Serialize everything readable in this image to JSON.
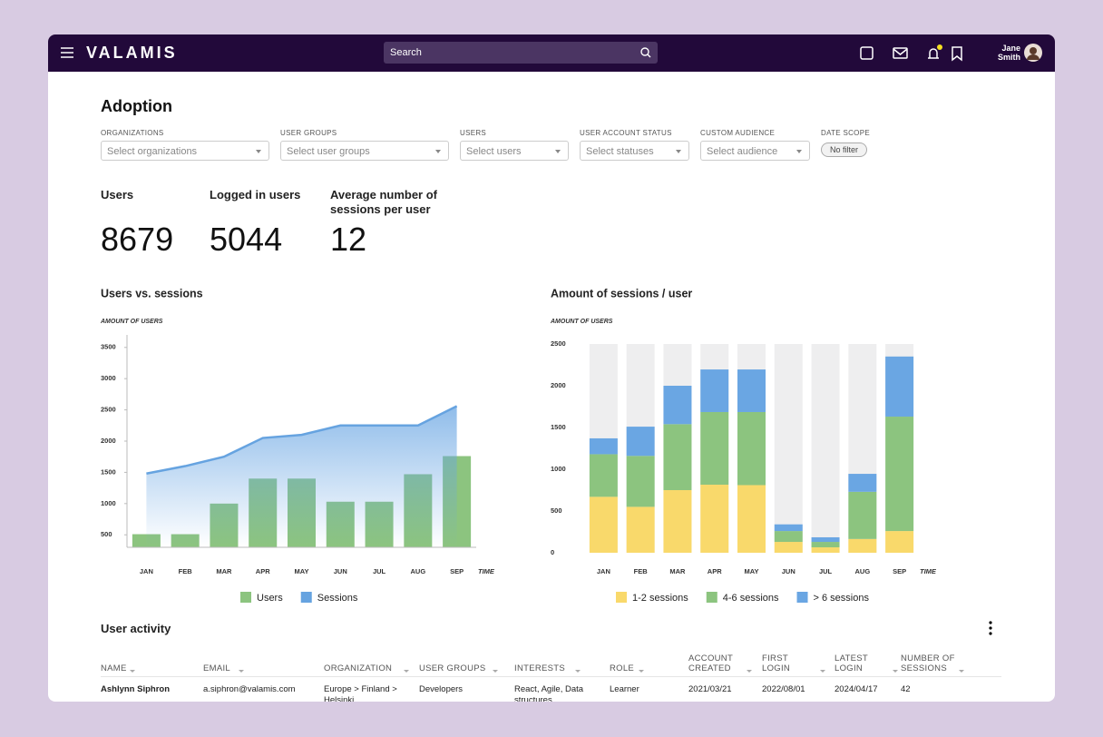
{
  "header": {
    "brand": "VALAMIS",
    "search": "Search",
    "user": "Jane Smith"
  },
  "page_title": "Adoption",
  "filters": [
    {
      "label": "ORGANIZATIONS",
      "placeholder": "Select organizations"
    },
    {
      "label": "USER GROUPS",
      "placeholder": "Select user groups"
    },
    {
      "label": "USERS",
      "placeholder": "Select users"
    },
    {
      "label": "USER ACCOUNT STATUS",
      "placeholder": "Select statuses"
    },
    {
      "label": "CUSTOM AUDIENCE",
      "placeholder": "Select audience"
    },
    {
      "label": "DATE SCOPE",
      "placeholder": "No filter"
    }
  ],
  "stats": [
    {
      "label": "Users",
      "value": 8679
    },
    {
      "label": "Logged in users",
      "value": 5044
    },
    {
      "label": "Average number of sessions per user",
      "value": 12
    }
  ],
  "chart_data": [
    {
      "type": "combo",
      "title": "Users vs. sessions",
      "y_label": "AMOUNT OF USERS",
      "x_label": "TIME",
      "categories": [
        "JAN",
        "FEB",
        "MAR",
        "APR",
        "MAY",
        "JUN",
        "JUL",
        "AUG",
        "SEP"
      ],
      "series": [
        {
          "name": "Users",
          "kind": "bar",
          "color": "#8cc47f",
          "values": [
            510,
            510,
            1000,
            1400,
            1400,
            1030,
            1030,
            1470,
            1760
          ]
        },
        {
          "name": "Sessions",
          "kind": "area",
          "color": "#66a3e0",
          "values": [
            1480,
            1600,
            1750,
            2050,
            2100,
            2250,
            2250,
            2250,
            2560
          ]
        }
      ],
      "ylim": [
        300,
        3700
      ],
      "yticks": [
        500,
        1000,
        1500,
        2000,
        2500,
        3000,
        3500
      ],
      "grid": false
    },
    {
      "type": "stacked",
      "title": "Amount of sessions / user",
      "y_label": "AMOUNT OF USERS",
      "x_label": "TIME",
      "categories": [
        "JAN",
        "FEB",
        "MAR",
        "APR",
        "MAY",
        "JUN",
        "JUL",
        "AUG",
        "SEP"
      ],
      "series": [
        {
          "name": "1-2 sessions",
          "color": "#f9d96b",
          "values": [
            670,
            550,
            750,
            815,
            810,
            130,
            65,
            165,
            260
          ]
        },
        {
          "name": "4-6 sessions",
          "color": "#8cc47f",
          "values": [
            510,
            610,
            790,
            870,
            875,
            130,
            65,
            565,
            1370
          ]
        },
        {
          "name": "> 6 sessions",
          "color": "#6aa6e3",
          "values": [
            190,
            350,
            460,
            510,
            510,
            80,
            55,
            215,
            720
          ]
        }
      ],
      "ylim": [
        0,
        2500
      ],
      "yticks": [
        0,
        500,
        1000,
        1500,
        2000,
        2500
      ],
      "grid": false
    }
  ],
  "table": {
    "title": "User activity",
    "columns": [
      "NAME",
      "EMAIL",
      "ORGANIZATION",
      "USER GROUPS",
      "INTERESTS",
      "ROLE",
      "ACCOUNT CREATED",
      "FIRST LOGIN",
      "LATEST LOGIN",
      "NUMBER OF SESSIONS"
    ],
    "rows": [
      [
        "Ashlynn Siphron",
        "a.siphron@valamis.com",
        "Europe > Finland > Helsinki",
        "Developers",
        "React, Agile, Data structures",
        "Learner",
        "2021/03/21",
        "2022/08/01",
        "2024/04/17",
        "42"
      ]
    ]
  }
}
